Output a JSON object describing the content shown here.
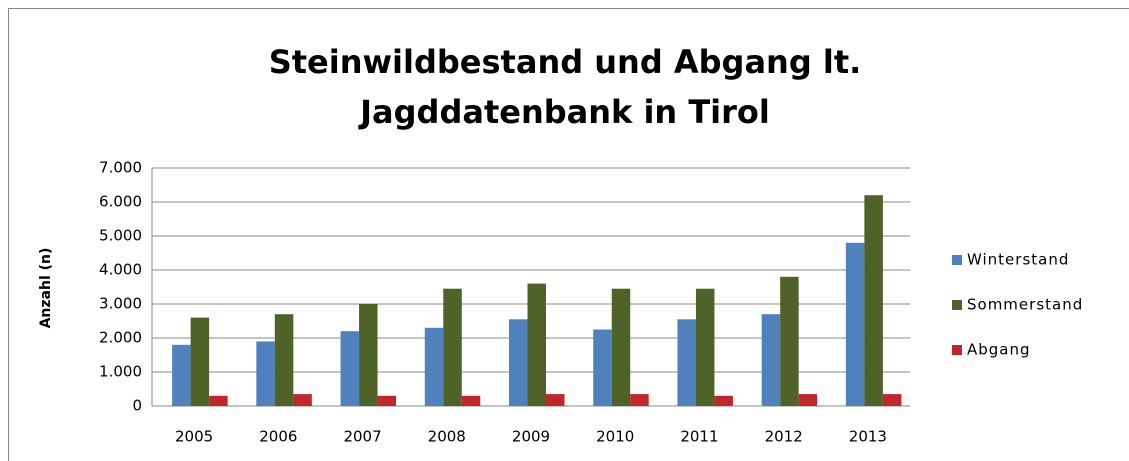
{
  "chart_data": {
    "type": "bar",
    "title": [
      "Steinwildbestand und Abgang lt.",
      "Jagddatenbank in Tirol"
    ],
    "y_label": "Anzahl (n)",
    "categories": [
      "2005",
      "2006",
      "2007",
      "2008",
      "2009",
      "2010",
      "2011",
      "2012",
      "2013"
    ],
    "series": [
      {
        "name": "Winterstand",
        "color": "#4f81bd",
        "values": [
          1800,
          1900,
          2200,
          2300,
          2550,
          2250,
          2550,
          2700,
          4800
        ]
      },
      {
        "name": "Sommerstand",
        "color": "#4f6228",
        "values": [
          2600,
          2700,
          3000,
          3450,
          3600,
          3450,
          3450,
          3800,
          6200
        ]
      },
      {
        "name": "Abgang",
        "color": "#c0262b",
        "values": [
          300,
          350,
          300,
          300,
          350,
          350,
          300,
          350,
          350
        ]
      }
    ],
    "ylim": [
      0,
      7000
    ],
    "yticks": [
      0,
      {
        "value": 1000,
        "label": "1.000"
      },
      {
        "value": 2000,
        "label": "2.000"
      },
      {
        "value": 3000,
        "label": "3.000"
      },
      {
        "value": 4000,
        "label": "4.000"
      },
      {
        "value": 5000,
        "label": "5.000"
      },
      {
        "value": 6000,
        "label": "6.000"
      },
      {
        "value": 7000,
        "label": "7.000"
      }
    ],
    "grid": true,
    "legend": "right"
  }
}
